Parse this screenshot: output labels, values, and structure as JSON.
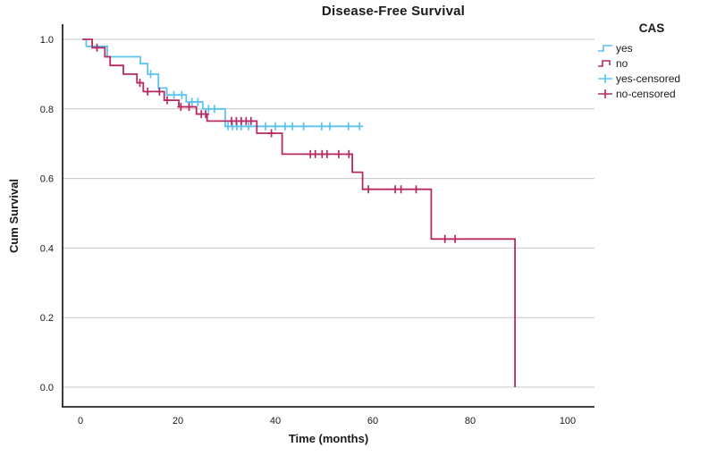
{
  "figure": {
    "title": "Disease-Free Survival",
    "x_axis": {
      "label": "Time (months)",
      "ticks": [
        "0",
        "20",
        "40",
        "60",
        "80",
        "100"
      ]
    },
    "y_axis": {
      "label": "Cum Survival",
      "ticks": [
        "1.0",
        "0.8",
        "0.6",
        "0.4",
        "0.2",
        "0.0"
      ]
    },
    "legend": {
      "title": "CAS",
      "entries": [
        {
          "label": "yes",
          "color": "#5bc3ee",
          "marker": "step-line"
        },
        {
          "label": "no",
          "color": "#b52b61",
          "marker": "step-line"
        },
        {
          "label": "yes-censored",
          "color": "#5bc3ee",
          "marker": "plus"
        },
        {
          "label": "no-censored",
          "color": "#b52b61",
          "marker": "plus"
        }
      ]
    },
    "colors": {
      "grid": "#c6c6c6",
      "axis": "#262626",
      "background": "#ffffff"
    }
  },
  "chart_data": {
    "type": "line",
    "subtype": "kaplan-meier-step",
    "title": "Disease-Free Survival",
    "xlabel": "Time (months)",
    "ylabel": "Cum Survival",
    "xlim": [
      -4,
      106
    ],
    "ylim": [
      -0.05,
      1.05
    ],
    "xticks": [
      0,
      20,
      40,
      60,
      80,
      100
    ],
    "yticks": [
      0.0,
      0.2,
      0.4,
      0.6,
      0.8,
      1.0
    ],
    "grid": "horizontal-only",
    "legend_position": "top-right",
    "legend_title": "CAS",
    "series": [
      {
        "name": "yes",
        "color": "#5bc3ee",
        "steps": [
          [
            0.5,
            1.0
          ],
          [
            1.2,
            0.98
          ],
          [
            5.5,
            0.95
          ],
          [
            12.3,
            0.93
          ],
          [
            13.8,
            0.9
          ],
          [
            16.0,
            0.86
          ],
          [
            17.7,
            0.84
          ],
          [
            21.7,
            0.82
          ],
          [
            25.1,
            0.8
          ],
          [
            29.7,
            0.75
          ]
        ],
        "end": 57.5,
        "censored": [
          [
            14.4,
            0.9
          ],
          [
            19.2,
            0.84
          ],
          [
            20.8,
            0.84
          ],
          [
            22.9,
            0.82
          ],
          [
            24.1,
            0.82
          ],
          [
            26.3,
            0.8
          ],
          [
            27.5,
            0.8
          ],
          [
            30.3,
            0.75
          ],
          [
            31.2,
            0.75
          ],
          [
            32.1,
            0.75
          ],
          [
            33.0,
            0.75
          ],
          [
            34.5,
            0.75
          ],
          [
            38.0,
            0.75
          ],
          [
            40.0,
            0.75
          ],
          [
            42.0,
            0.75
          ],
          [
            43.5,
            0.75
          ],
          [
            45.8,
            0.75
          ],
          [
            49.5,
            0.75
          ],
          [
            51.2,
            0.75
          ],
          [
            55.0,
            0.75
          ],
          [
            57.3,
            0.75
          ]
        ]
      },
      {
        "name": "no",
        "color": "#b52b61",
        "steps": [
          [
            0.4,
            1.0
          ],
          [
            2.4,
            0.976
          ],
          [
            5.0,
            0.95
          ],
          [
            6.1,
            0.925
          ],
          [
            8.8,
            0.9
          ],
          [
            11.6,
            0.875
          ],
          [
            12.9,
            0.85
          ],
          [
            17.2,
            0.825
          ],
          [
            20.2,
            0.806
          ],
          [
            23.8,
            0.785
          ],
          [
            26.0,
            0.765
          ],
          [
            36.2,
            0.73
          ],
          [
            41.4,
            0.67
          ],
          [
            55.8,
            0.618
          ],
          [
            57.9,
            0.569
          ],
          [
            72.0,
            0.426
          ],
          [
            89.2,
            0.0
          ]
        ],
        "end": 89.2,
        "censored": [
          [
            3.4,
            0.976
          ],
          [
            12.2,
            0.875
          ],
          [
            13.8,
            0.85
          ],
          [
            16.2,
            0.85
          ],
          [
            17.8,
            0.825
          ],
          [
            20.6,
            0.806
          ],
          [
            22.3,
            0.806
          ],
          [
            24.8,
            0.785
          ],
          [
            25.7,
            0.785
          ],
          [
            31.0,
            0.765
          ],
          [
            32.0,
            0.765
          ],
          [
            33.0,
            0.765
          ],
          [
            34.0,
            0.765
          ],
          [
            35.0,
            0.765
          ],
          [
            39.2,
            0.73
          ],
          [
            47.2,
            0.67
          ],
          [
            48.2,
            0.67
          ],
          [
            49.6,
            0.67
          ],
          [
            50.6,
            0.67
          ],
          [
            53.0,
            0.67
          ],
          [
            55.1,
            0.67
          ],
          [
            59.1,
            0.569
          ],
          [
            64.6,
            0.569
          ],
          [
            65.8,
            0.569
          ],
          [
            68.9,
            0.569
          ],
          [
            74.8,
            0.426
          ],
          [
            76.9,
            0.426
          ]
        ]
      }
    ]
  }
}
